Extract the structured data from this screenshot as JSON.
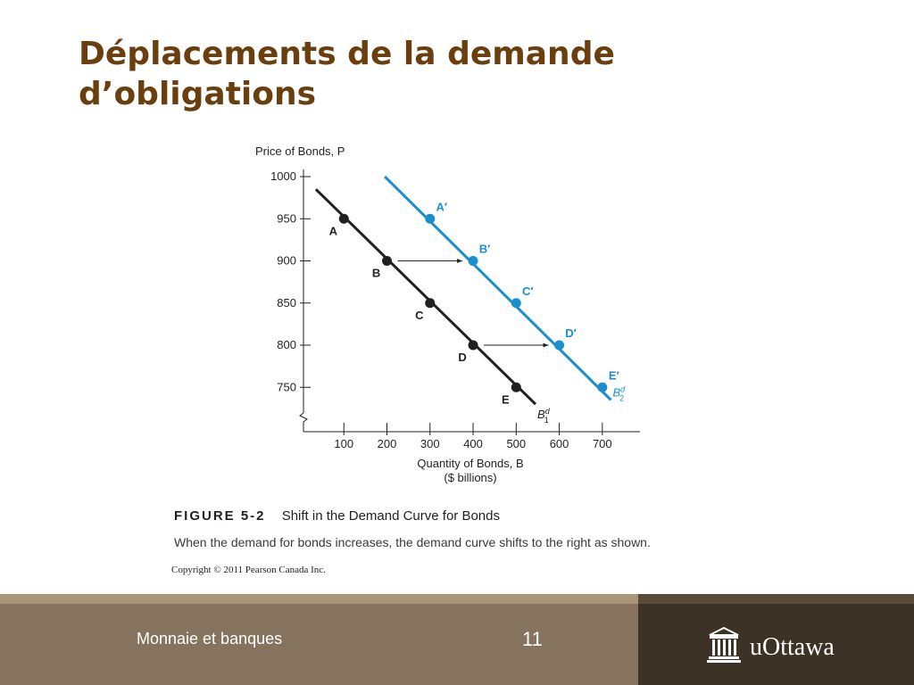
{
  "slide": {
    "title_line1": "Déplacements de la demande",
    "title_line2": "d’obligations"
  },
  "chart_data": {
    "type": "line",
    "ylabel": "Price of Bonds, P",
    "xlabel_line1": "Quantity of Bonds, B",
    "xlabel_line2": "($ billions)",
    "xlim": [
      0,
      780
    ],
    "ylim": [
      725,
      1000
    ],
    "x_ticks": [
      100,
      200,
      300,
      400,
      500,
      600,
      700
    ],
    "y_ticks": [
      750,
      800,
      850,
      900,
      950,
      1000
    ],
    "axis_break": true,
    "series": [
      {
        "name": "B1d",
        "label_main": "B",
        "label_sup": "d",
        "label_sub": "1",
        "color": "#231f20",
        "line": [
          [
            35,
            985
          ],
          [
            545,
            730
          ]
        ],
        "points": [
          {
            "label": "A",
            "x": 100,
            "y": 950
          },
          {
            "label": "B",
            "x": 200,
            "y": 900
          },
          {
            "label": "C",
            "x": 300,
            "y": 850
          },
          {
            "label": "D",
            "x": 400,
            "y": 800
          },
          {
            "label": "E",
            "x": 500,
            "y": 750
          }
        ]
      },
      {
        "name": "B2d",
        "label_main": "B",
        "label_sup": "d",
        "label_sub": "2",
        "color": "#1b8fce",
        "line": [
          [
            195,
            1000
          ],
          [
            720,
            735
          ]
        ],
        "points": [
          {
            "label": "A′",
            "x": 300,
            "y": 950
          },
          {
            "label": "B′",
            "x": 400,
            "y": 900
          },
          {
            "label": "C′",
            "x": 500,
            "y": 850
          },
          {
            "label": "D′",
            "x": 600,
            "y": 800
          },
          {
            "label": "E′",
            "x": 700,
            "y": 750
          }
        ]
      }
    ],
    "arrows": [
      {
        "from": [
          200,
          900
        ],
        "to": [
          400,
          900
        ]
      },
      {
        "from": [
          400,
          800
        ],
        "to": [
          600,
          800
        ]
      }
    ]
  },
  "figure": {
    "label": "FIGURE 5-2",
    "title": "Shift in the Demand Curve for Bonds",
    "description": "When the demand for bonds increases, the demand curve shifts to the right as shown.",
    "copyright": "Copyright © 2011 Pearson Canada Inc."
  },
  "footer": {
    "course": "Monnaie et banques",
    "page_number": "11",
    "logo_text": "uOttawa"
  }
}
